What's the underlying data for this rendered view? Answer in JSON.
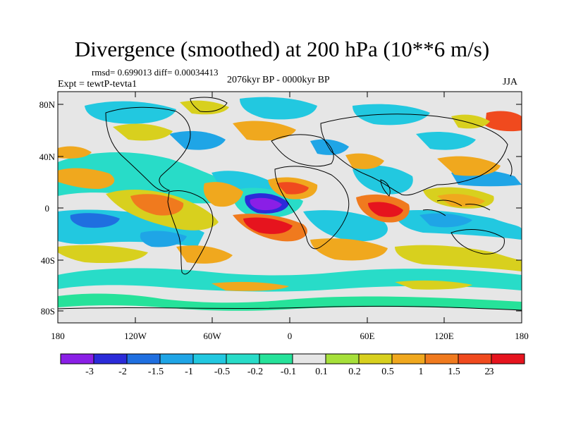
{
  "title": "Divergence (smoothed) at 200 hPa (10**6 m/s)",
  "stats": "rmsd= 0.699013 diff= 0.00034413",
  "experiment": "Expt = tewtP-tevta1",
  "period": "2076kyr BP - 0000kyr BP",
  "season": "JJA",
  "latitude_labels": [
    "80N",
    "40N",
    "0",
    "40S",
    "80S"
  ],
  "longitude_labels": [
    "180",
    "120W",
    "60W",
    "0",
    "60E",
    "120E",
    "180"
  ],
  "colorbar": {
    "labels": [
      "-3",
      "-2",
      "-1.5",
      "-1",
      "-0.5",
      "-0.2",
      "-0.1",
      "0.1",
      "0.2",
      "0.5",
      "1",
      "1.5",
      "2",
      "3"
    ],
    "colors": [
      "#8a1fe6",
      "#2b2bd9",
      "#1f6fe0",
      "#1fa5e6",
      "#22c8e0",
      "#28dcc8",
      "#26e29a",
      "#e6e6e6",
      "#a6e03a",
      "#d8d01e",
      "#f0a81e",
      "#f07a1e",
      "#f04a1e",
      "#e6141e"
    ]
  },
  "map_colors": {
    "neutral": "#e6e6e6",
    "coast": "#000000"
  }
}
